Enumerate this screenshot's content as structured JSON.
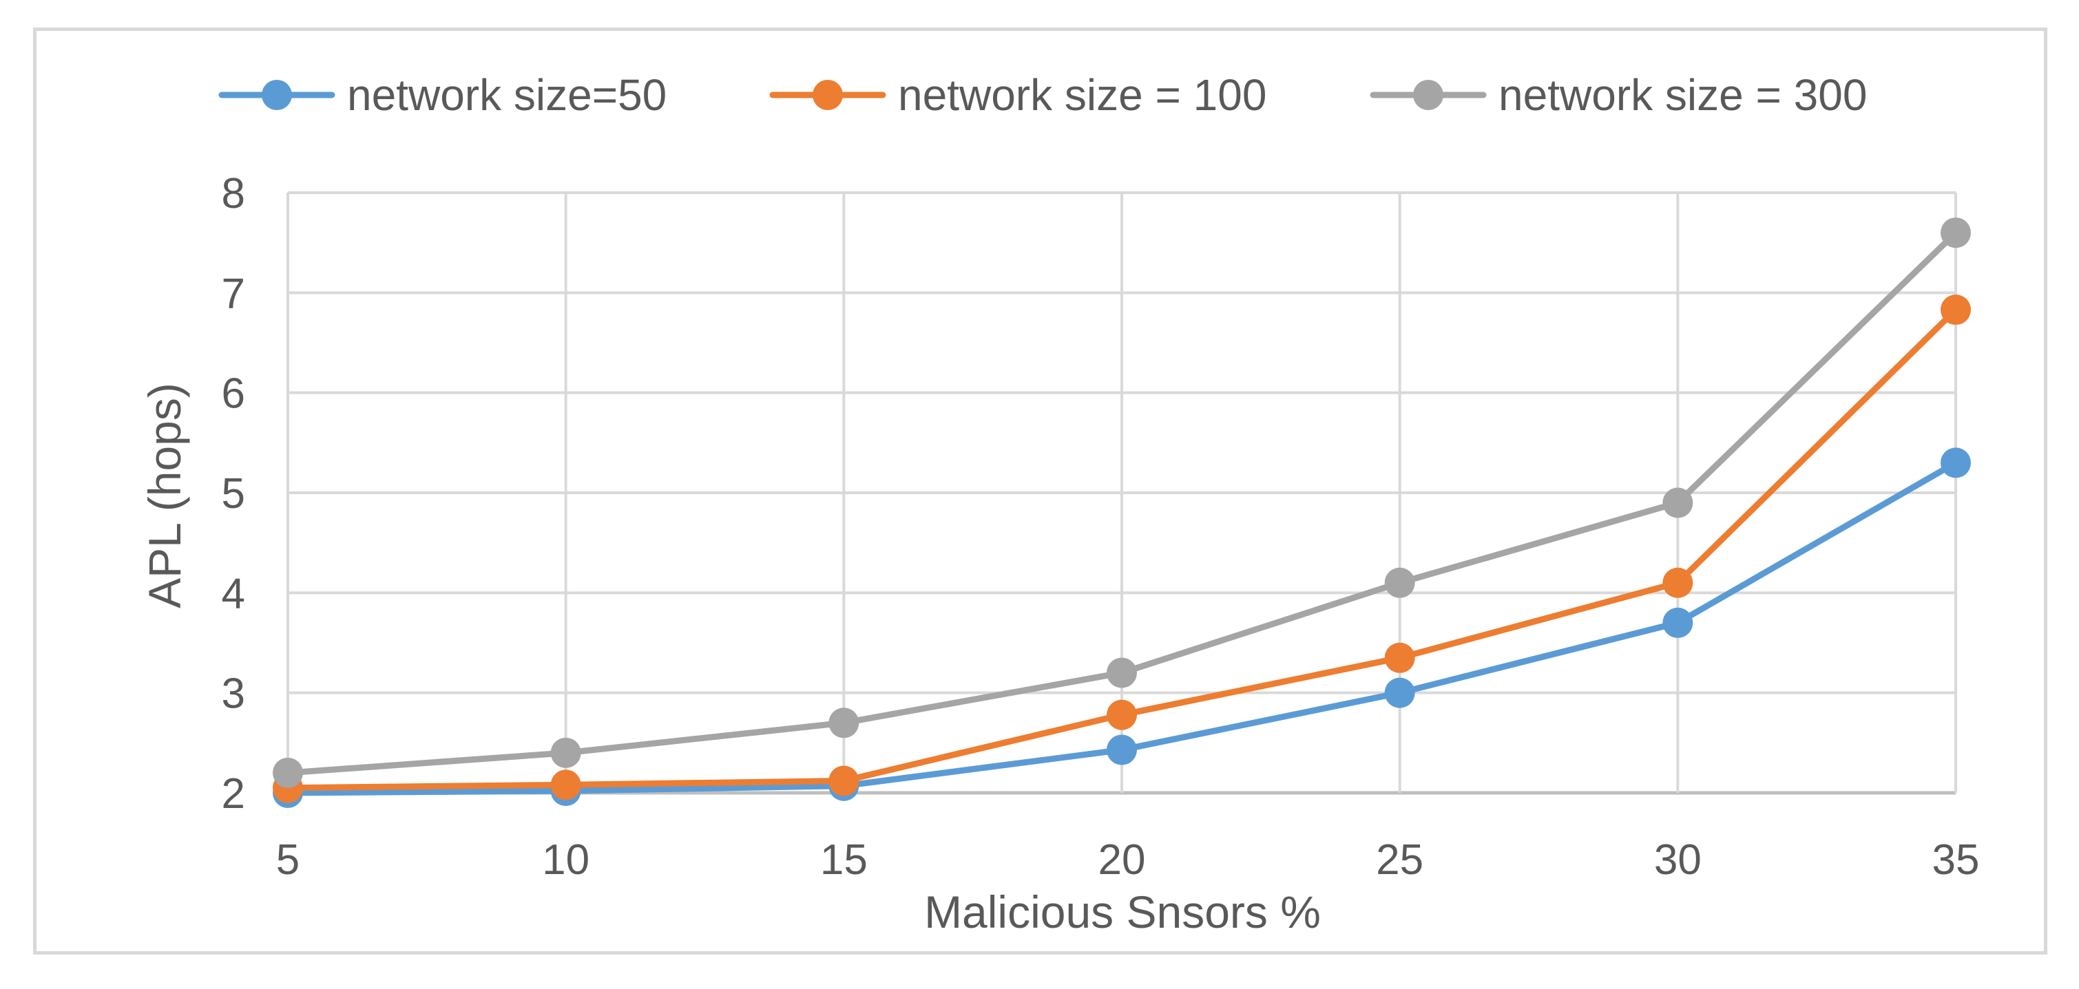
{
  "chart_data": {
    "type": "line",
    "title": "",
    "xlabel": "Malicious Snsors %",
    "ylabel": "APL (hops)",
    "x": [
      5,
      10,
      15,
      20,
      25,
      30,
      35
    ],
    "x_tick_labels": [
      "5",
      "10",
      "15",
      "20",
      "25",
      "30",
      "35"
    ],
    "y_tick_labels": [
      "2",
      "3",
      "4",
      "5",
      "6",
      "7",
      "8"
    ],
    "ylim": [
      2,
      8
    ],
    "grid": true,
    "legend_position": "top",
    "series": [
      {
        "name": "network size=50",
        "color": "#5b9bd5",
        "values": [
          2.0,
          2.02,
          2.07,
          2.43,
          3.0,
          3.7,
          5.3
        ]
      },
      {
        "name": "network size = 100",
        "color": "#ed7d31",
        "values": [
          2.05,
          2.08,
          2.12,
          2.78,
          3.35,
          4.1,
          6.83
        ]
      },
      {
        "name": "network size = 300",
        "color": "#a5a5a5",
        "values": [
          2.2,
          2.4,
          2.7,
          3.2,
          4.1,
          4.9,
          7.6
        ]
      }
    ]
  }
}
